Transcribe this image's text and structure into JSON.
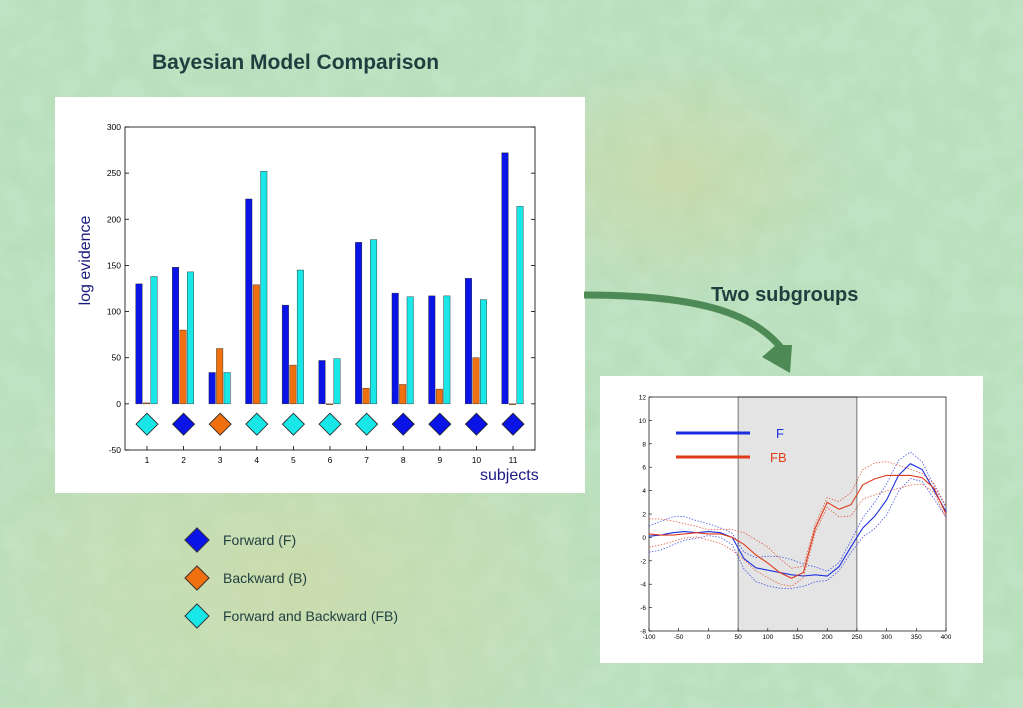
{
  "slide": {
    "title": "Bayesian Model Comparison",
    "subtitle": "Two subgroups"
  },
  "colors": {
    "forward": "#0a14e6",
    "backward": "#f07010",
    "forward_backward": "#19e6e6",
    "F_line": "#1a2ee0",
    "FB_line": "#e03a1a",
    "arrow": "#4d8a55"
  },
  "legend": [
    {
      "label": "Forward (F)",
      "color": "#0a14e6",
      "icon": "diamond-icon"
    },
    {
      "label": "Backward (B)",
      "color": "#f07010",
      "icon": "diamond-icon"
    },
    {
      "label": "Forward and Backward (FB)",
      "color": "#19e6e6",
      "icon": "diamond-icon"
    }
  ],
  "chart_data": [
    {
      "type": "bar",
      "xlabel": "subjects",
      "ylabel": "log evidence",
      "ylim": [
        -50,
        300
      ],
      "yticks": [
        -50,
        0,
        50,
        100,
        150,
        200,
        250,
        300
      ],
      "categories": [
        "1",
        "2",
        "3",
        "4",
        "5",
        "6",
        "7",
        "8",
        "9",
        "10",
        "11"
      ],
      "series": [
        {
          "name": "Forward (F)",
          "values": [
            130,
            148,
            34,
            222,
            107,
            47,
            175,
            120,
            117,
            136,
            272
          ]
        },
        {
          "name": "Backward (B)",
          "values": [
            1,
            80,
            60,
            129,
            42,
            0,
            17,
            21,
            16,
            50,
            0
          ]
        },
        {
          "name": "Forward and Backward (FB)",
          "values": [
            138,
            143,
            34,
            252,
            145,
            49,
            178,
            116,
            117,
            113,
            214
          ]
        }
      ],
      "best_model": [
        "FB",
        "F",
        "B",
        "FB",
        "FB",
        "FB",
        "FB",
        "F",
        "F",
        "F",
        "F"
      ],
      "grid": false
    },
    {
      "type": "line",
      "xlim": [
        -100,
        400
      ],
      "ylim": [
        -8,
        12
      ],
      "xticks": [
        -100,
        -50,
        0,
        50,
        100,
        150,
        200,
        250,
        300,
        350,
        400
      ],
      "yticks": [
        -8,
        -6,
        -4,
        -2,
        0,
        2,
        4,
        6,
        8,
        10,
        12
      ],
      "shaded_interval": [
        50,
        250
      ],
      "legend_labels": [
        "F",
        "FB"
      ],
      "series": [
        {
          "name": "F",
          "x": [
            -100,
            -80,
            -60,
            -40,
            -20,
            0,
            20,
            40,
            60,
            80,
            100,
            120,
            140,
            160,
            180,
            200,
            220,
            240,
            260,
            280,
            300,
            320,
            340,
            360,
            380,
            400
          ],
          "y": [
            0.1,
            0.2,
            0.4,
            0.5,
            0.4,
            0.5,
            0.4,
            0.0,
            -1.8,
            -2.6,
            -2.8,
            -3.0,
            -3.2,
            -3.3,
            -3.2,
            -3.3,
            -2.5,
            -0.8,
            0.8,
            1.8,
            3.2,
            5.3,
            6.3,
            5.8,
            4.0,
            2.2
          ]
        },
        {
          "name": "FB",
          "x": [
            -100,
            -80,
            -60,
            -40,
            -20,
            0,
            20,
            40,
            60,
            80,
            100,
            120,
            140,
            160,
            180,
            200,
            220,
            240,
            260,
            280,
            300,
            320,
            340,
            360,
            380,
            400
          ],
          "y": [
            0.3,
            0.2,
            0.2,
            0.3,
            0.4,
            0.3,
            0.3,
            0.0,
            -0.6,
            -1.5,
            -2.2,
            -3.0,
            -3.5,
            -3.0,
            0.8,
            3.0,
            2.4,
            2.8,
            4.5,
            5.0,
            5.3,
            5.3,
            5.3,
            5.1,
            4.2,
            2.0
          ]
        }
      ]
    }
  ]
}
